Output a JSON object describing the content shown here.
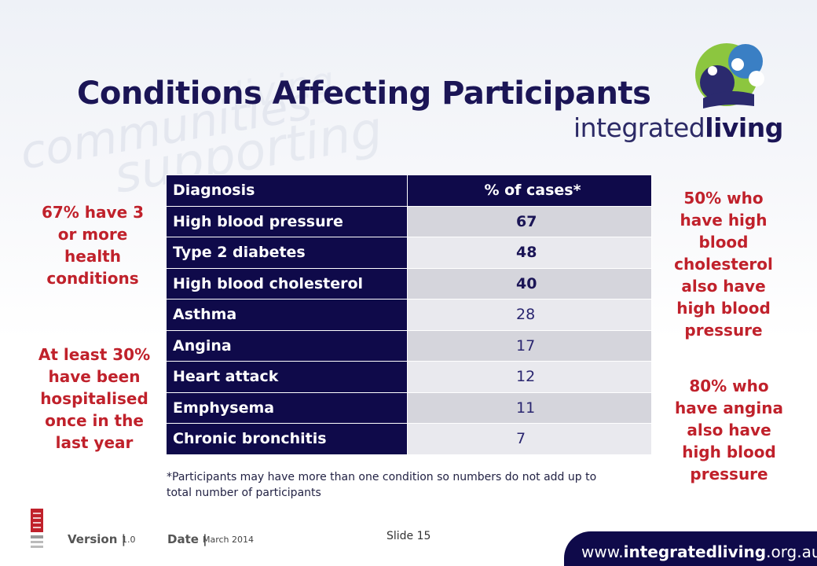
{
  "slide": {
    "title": "Conditions Affecting Participants",
    "logo_text": {
      "normal": "integrated",
      "bold": "living"
    }
  },
  "table": {
    "headers": [
      "Diagnosis",
      "% of cases*"
    ],
    "rows": [
      {
        "diagnosis": "High blood pressure",
        "percent": "67"
      },
      {
        "diagnosis": "Type 2 diabetes",
        "percent": "48"
      },
      {
        "diagnosis": "High blood cholesterol",
        "percent": "40"
      },
      {
        "diagnosis": "Asthma",
        "percent": "28"
      },
      {
        "diagnosis": "Angina",
        "percent": "17"
      },
      {
        "diagnosis": "Heart attack",
        "percent": "12"
      },
      {
        "diagnosis": "Emphysema",
        "percent": "11"
      },
      {
        "diagnosis": "Chronic bronchitis",
        "percent": "7"
      }
    ]
  },
  "footnote": "*Participants may have more than one condition so numbers do not add up to total number of participants",
  "callouts": {
    "left_top": "67% have 3 or more health conditions",
    "left_bottom": "At least 30% have been hospitalised once in the last year",
    "right_top": "50% who have high blood cholesterol also have high blood pressure",
    "right_bottom": "80% who have angina also have high blood pressure"
  },
  "footer": {
    "version_label": "Version |",
    "version_value": "1.0",
    "date_label": "Date |",
    "date_value": "March 2014",
    "slide_number": "Slide 15",
    "url": {
      "prefix": "www.",
      "bold": "integratedliving",
      "suffix": ".org.au"
    }
  },
  "colors": {
    "navy": "#0f0a4a",
    "title": "#1b1556",
    "callout_red": "#c0212b",
    "logo_green": "#8cc63f",
    "logo_blue": "#3a7fc4"
  }
}
